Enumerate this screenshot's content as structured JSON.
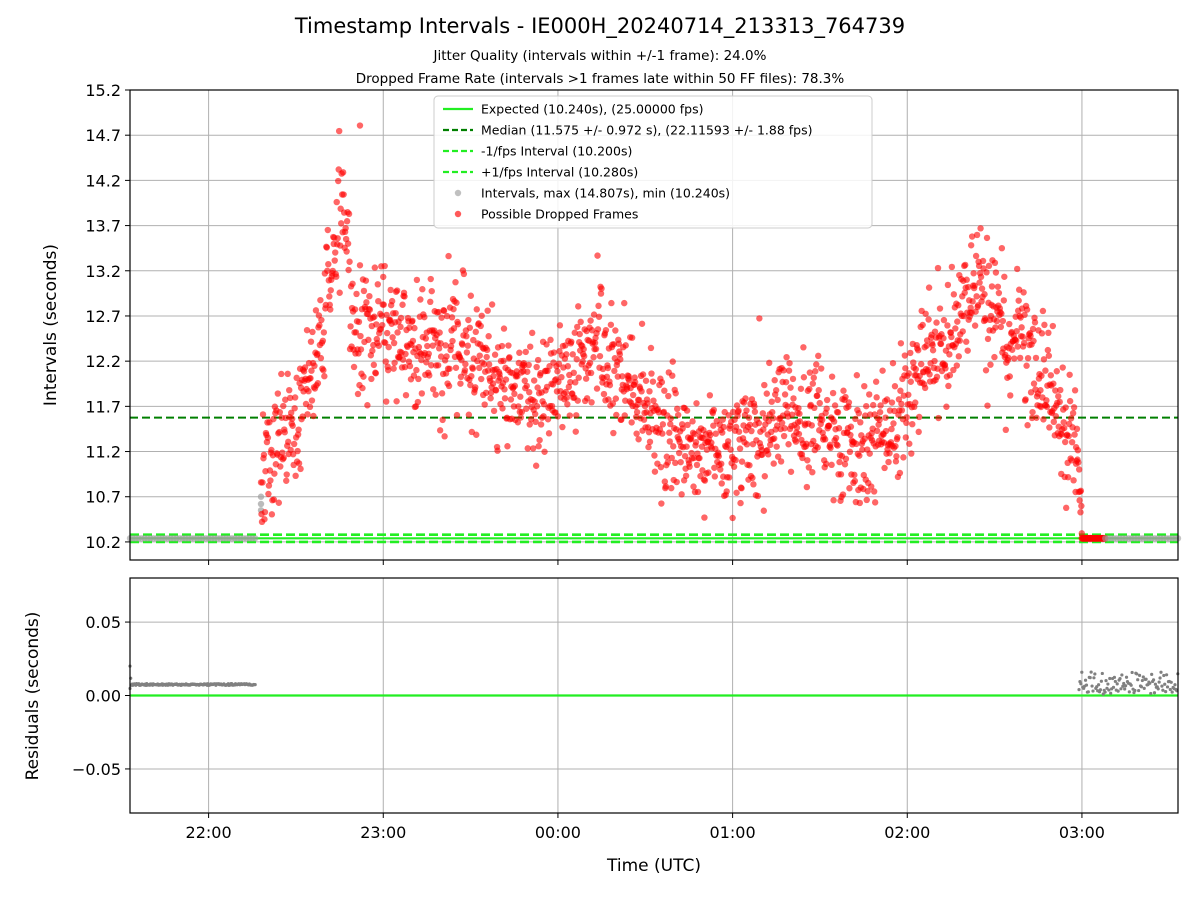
{
  "chart_data": [
    {
      "type": "scatter",
      "title": "Timestamp Intervals - IE000H_20240714_213313_764739",
      "subtitle": [
        "Jitter Quality (intervals within +/-1 frame): 24.0%",
        "Dropped Frame Rate (intervals >1 frames late within 50 FF files): 78.3%"
      ],
      "xlabel": "",
      "ylabel": "Intervals (seconds)",
      "ylim": [
        10.0,
        15.2
      ],
      "y_ticks": [
        "10.2",
        "10.7",
        "11.2",
        "11.7",
        "12.2",
        "12.7",
        "13.2",
        "13.7",
        "14.2",
        "14.7",
        "15.2"
      ],
      "x_range": [
        "21:33",
        "03:33"
      ],
      "grid": true,
      "legend_position": "top-center",
      "legend": [
        "Expected (10.240s), (25.00000 fps)",
        "Median (11.575 +/- 0.972 s), (22.11593 +/- 1.88 fps)",
        "-1/fps Interval (10.200s)",
        "+1/fps Interval (10.280s)",
        "Intervals, max (14.807s), min (10.240s)",
        "Possible Dropped Frames"
      ],
      "lines": {
        "expected": 10.24,
        "median": 11.575,
        "minus_1_fps": 10.2,
        "plus_1_fps": 10.28
      },
      "colors": {
        "expected": "#22ee22",
        "median": "#007f00",
        "interval_bounds": "#22ee22",
        "normal_points": "#9e9e9e",
        "dropped_points": "#ff0000"
      },
      "trend": {
        "x": [
          "21:33",
          "22:13",
          "22:20",
          "22:30",
          "22:37",
          "22:46",
          "22:50",
          "23:00",
          "23:15",
          "23:30",
          "23:45",
          "00:00",
          "00:15",
          "00:30",
          "00:45",
          "01:00",
          "01:15",
          "01:30",
          "01:45",
          "01:58",
          "02:05",
          "02:15",
          "02:25",
          "02:35",
          "02:40",
          "02:50",
          "02:58",
          "03:00",
          "03:33"
        ],
        "y": [
          10.24,
          10.24,
          11.1,
          11.5,
          12.2,
          14.1,
          12.6,
          12.5,
          12.3,
          12.4,
          11.8,
          11.9,
          12.4,
          11.6,
          11.2,
          11.3,
          11.5,
          11.6,
          11.2,
          11.5,
          12.2,
          12.5,
          13.0,
          12.3,
          12.5,
          11.7,
          11.3,
          10.24,
          10.24
        ],
        "approximate": true
      },
      "extremes": {
        "max": 14.807,
        "min": 10.24
      }
    },
    {
      "type": "scatter",
      "title": "",
      "xlabel": "Time (UTC)",
      "ylabel": "Residuals (seconds)",
      "ylim": [
        -0.08,
        0.08
      ],
      "y_ticks": [
        "0.05",
        "0.00",
        "−0.05"
      ],
      "x_ticks": [
        "22:00",
        "23:00",
        "00:00",
        "01:00",
        "02:00",
        "03:00"
      ],
      "x_range": [
        "21:33",
        "03:33"
      ],
      "grid": true,
      "zero_line": 0.0,
      "segments": [
        {
          "x": [
            "21:33",
            "22:16"
          ],
          "residual": 0.0075,
          "first_point": 0.02
        },
        {
          "x": [
            "02:59",
            "03:33"
          ],
          "residual_range": [
            0.001,
            0.016
          ]
        }
      ]
    }
  ]
}
